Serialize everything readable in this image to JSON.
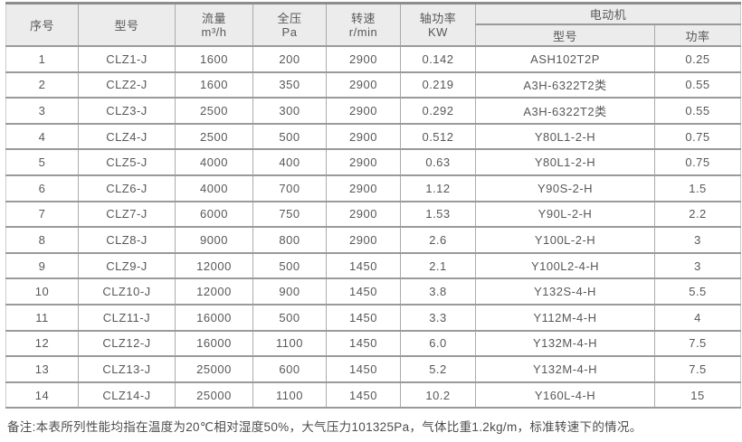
{
  "colors": {
    "top-border": "#8d8d8d",
    "border-h": "#9a9a9a",
    "border-v": "#ababab",
    "header-bg": "#ececec",
    "text": "#585858"
  },
  "table": {
    "headers": {
      "seq": "序号",
      "model": "型号",
      "flow_label": "流量",
      "flow_unit": "m³/h",
      "pressure_label": "全压",
      "pressure_unit": "Pa",
      "speed_label": "转速",
      "speed_unit": "r/min",
      "shaft_power_label": "轴功率",
      "shaft_power_unit": "KW",
      "motor_group": "电动机",
      "motor_model": "型号",
      "motor_power": "功率"
    },
    "rows": [
      [
        "1",
        "CLZ1-J",
        "1600",
        "200",
        "2900",
        "0.142",
        "ASH102T2P",
        "0.25"
      ],
      [
        "2",
        "CLZ2-J",
        "1600",
        "350",
        "2900",
        "0.219",
        "A3H-6322T2类",
        "0.55"
      ],
      [
        "3",
        "CLZ3-J",
        "2500",
        "300",
        "2900",
        "0.292",
        "A3H-6322T2类",
        "0.55"
      ],
      [
        "4",
        "CLZ4-J",
        "2500",
        "500",
        "2900",
        "0.512",
        "Y80L1-2-H",
        "0.75"
      ],
      [
        "5",
        "CLZ5-J",
        "4000",
        "400",
        "2900",
        "0.63",
        "Y80L1-2-H",
        "0.75"
      ],
      [
        "6",
        "CLZ6-J",
        "4000",
        "700",
        "2900",
        "1.12",
        "Y90S-2-H",
        "1.5"
      ],
      [
        "7",
        "CLZ7-J",
        "6000",
        "750",
        "2900",
        "1.53",
        "Y90L-2-H",
        "2.2"
      ],
      [
        "8",
        "CLZ8-J",
        "9000",
        "800",
        "2900",
        "2.6",
        "Y100L-2-H",
        "3"
      ],
      [
        "9",
        "CLZ9-J",
        "12000",
        "500",
        "1450",
        "2.1",
        "Y100L2-4-H",
        "3"
      ],
      [
        "10",
        "CLZ10-J",
        "12000",
        "900",
        "1450",
        "3.8",
        "Y132S-4-H",
        "5.5"
      ],
      [
        "11",
        "CLZ11-J",
        "16000",
        "500",
        "1450",
        "3.3",
        "Y112M-4-H",
        "4"
      ],
      [
        "12",
        "CLZ12-J",
        "16000",
        "1100",
        "1450",
        "6.0",
        "Y132M-4-H",
        "7.5"
      ],
      [
        "13",
        "CLZ13-J",
        "25000",
        "600",
        "1450",
        "5.2",
        "Y132M-4-H",
        "7.5"
      ],
      [
        "14",
        "CLZ14-J",
        "25000",
        "1100",
        "1450",
        "10.2",
        "Y160L-4-H",
        "15"
      ]
    ]
  },
  "note": "备注:本表所列性能均指在温度为20℃相对湿度50%，大气压力101325Pa，气体比重1.2kg/m，标准转速下的情况。"
}
